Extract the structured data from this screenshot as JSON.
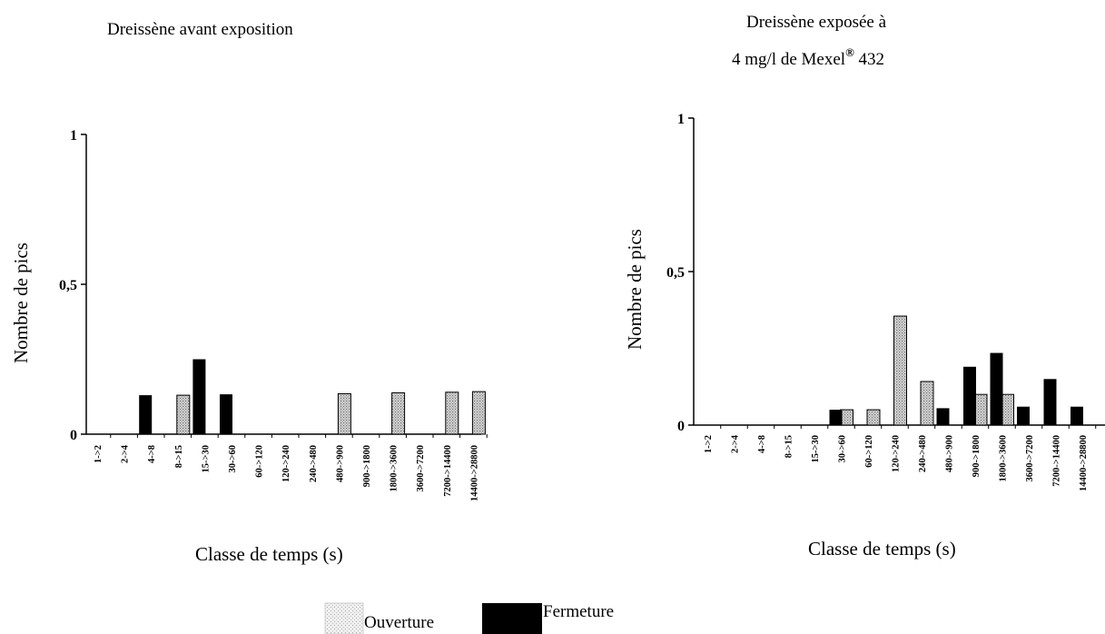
{
  "chart_data": [
    {
      "type": "bar",
      "title": "Dreissène avant exposition",
      "xlabel": "Classe de temps (s)",
      "ylabel": "Nombre de pics",
      "ylim": [
        0,
        1
      ],
      "yticks": [
        "0",
        "0,5",
        "1"
      ],
      "categories": [
        "1->2",
        "2->4",
        "4->8",
        "8->15",
        "15->30",
        "30->60",
        "60->120",
        "120->240",
        "240->480",
        "480->900",
        "900->1800",
        "1800->3600",
        "3600->7200",
        "7200->14400",
        "14400->28800"
      ],
      "series": [
        {
          "name": "Ouverture",
          "values": [
            0,
            0,
            0,
            0.13,
            0,
            0,
            0,
            0,
            0,
            0.135,
            0,
            0.138,
            0,
            0.14,
            0.142
          ]
        },
        {
          "name": "Fermeture",
          "values": [
            0,
            0,
            0.13,
            0,
            0.25,
            0.133,
            0,
            0,
            0,
            0,
            0,
            0,
            0,
            0,
            0
          ]
        }
      ]
    },
    {
      "type": "bar",
      "title_line1": "Dreissène exposée à",
      "title_line2_main": "4 mg/l de Mexel",
      "title_line2_sup": "®",
      "title_line2_end": " 432",
      "xlabel": "Classe de temps (s)",
      "ylabel": "Nombre de pics",
      "ylim": [
        0,
        1
      ],
      "yticks": [
        "0",
        "0,5",
        "1"
      ],
      "categories": [
        "1->2",
        "2->4",
        "4->8",
        "8->15",
        "15->30",
        "30->60",
        "60->120",
        "120->240",
        "240->480",
        "480->900",
        "900->1800",
        "1800->3600",
        "3600->7200",
        "7200->14400",
        "14400->28800"
      ],
      "series": [
        {
          "name": "Ouverture",
          "values": [
            0,
            0,
            0,
            0,
            0,
            0.05,
            0.05,
            0.355,
            0.142,
            0,
            0.1,
            0.1,
            0,
            0,
            0
          ]
        },
        {
          "name": "Fermeture",
          "values": [
            0,
            0,
            0,
            0,
            0,
            0.05,
            0,
            0,
            0,
            0.055,
            0.19,
            0.235,
            0.06,
            0.15,
            0.06
          ]
        }
      ]
    }
  ],
  "legend": {
    "items": [
      {
        "label": "Ouverture",
        "swatch": "dotted-light"
      },
      {
        "label": "Fermeture",
        "swatch": "black"
      }
    ]
  },
  "colors": {
    "ouverture_fill": "#c8c8c8",
    "ouverture_dots": "#7a7a7a",
    "fermeture_fill": "#000000"
  }
}
